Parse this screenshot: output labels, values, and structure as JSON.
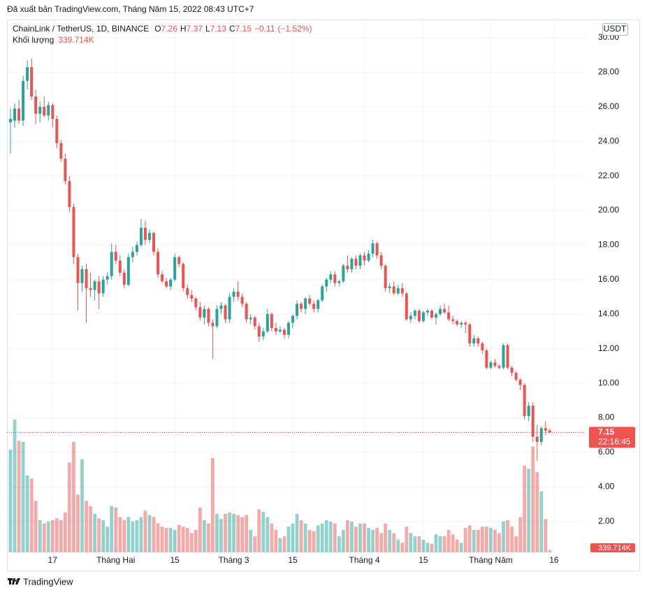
{
  "header": {
    "published": "Đã xuất bản TradingView.com, Tháng Năm 15, 2022 08:43 UTC+7"
  },
  "footer": {
    "brand": "TradingView"
  },
  "chart_data": {
    "type": "candlestick",
    "legend": {
      "symbol": "ChainLink / TetherUS, 1D, BINANCE",
      "fields": [
        "O",
        "H",
        "L",
        "C"
      ],
      "change": {
        "value": -0.11,
        "label": "−0.11"
      },
      "change_pct": {
        "value": -1.52,
        "label": "(−1.52%)"
      },
      "volume_name": "Khối lượng",
      "volume_value": "339.714K",
      "countdown": "22:16:45"
    },
    "currency": "USDT",
    "up_color": "#26a69a",
    "down_color": "#ef5350",
    "ylim": [
      0.21,
      31.05
    ],
    "yticks": [
      {
        "value": 2,
        "label": "2.00"
      },
      {
        "value": 4,
        "label": "4.00"
      },
      {
        "value": 6,
        "label": "6.00"
      },
      {
        "value": 8,
        "label": "8.00"
      },
      {
        "value": 10,
        "label": "10.00"
      },
      {
        "value": 12,
        "label": "12.00"
      },
      {
        "value": 14,
        "label": "14.00"
      },
      {
        "value": 16,
        "label": "16.00"
      },
      {
        "value": 18,
        "label": "18.00"
      },
      {
        "value": 20,
        "label": "20.00"
      },
      {
        "value": 22,
        "label": "22.00"
      },
      {
        "value": 24,
        "label": "24.00"
      },
      {
        "value": 26,
        "label": "26.00"
      },
      {
        "value": 28,
        "label": "28.00"
      },
      {
        "value": 30,
        "label": "30.00"
      }
    ],
    "vlim": [
      0,
      83000000
    ],
    "grid": true,
    "xticks": [
      {
        "value": "2022-01-17",
        "label": "17"
      },
      {
        "value": "2022-02-01",
        "label": "Tháng Hai"
      },
      {
        "value": "2022-02-15",
        "label": "15"
      },
      {
        "value": "2022-03-01",
        "label": "Tháng 3"
      },
      {
        "value": "2022-03-15",
        "label": "15"
      },
      {
        "value": "2022-04-01",
        "label": "Tháng 4"
      },
      {
        "value": "2022-04-15",
        "label": "15"
      },
      {
        "value": "2022-05-01",
        "label": "Tháng Năm"
      },
      {
        "value": "2022-05-16",
        "label": "16"
      }
    ],
    "x": [
      "2022-01-07",
      "2022-01-08",
      "2022-01-09",
      "2022-01-10",
      "2022-01-11",
      "2022-01-12",
      "2022-01-13",
      "2022-01-14",
      "2022-01-15",
      "2022-01-16",
      "2022-01-17",
      "2022-01-18",
      "2022-01-19",
      "2022-01-20",
      "2022-01-21",
      "2022-01-22",
      "2022-01-23",
      "2022-01-24",
      "2022-01-25",
      "2022-01-26",
      "2022-01-27",
      "2022-01-28",
      "2022-01-29",
      "2022-01-30",
      "2022-01-31",
      "2022-02-01",
      "2022-02-02",
      "2022-02-03",
      "2022-02-04",
      "2022-02-05",
      "2022-02-06",
      "2022-02-07",
      "2022-02-08",
      "2022-02-09",
      "2022-02-10",
      "2022-02-11",
      "2022-02-12",
      "2022-02-13",
      "2022-02-14",
      "2022-02-15",
      "2022-02-16",
      "2022-02-17",
      "2022-02-18",
      "2022-02-19",
      "2022-02-20",
      "2022-02-21",
      "2022-02-22",
      "2022-02-23",
      "2022-02-24",
      "2022-02-25",
      "2022-02-26",
      "2022-02-27",
      "2022-02-28",
      "2022-03-01",
      "2022-03-02",
      "2022-03-03",
      "2022-03-04",
      "2022-03-05",
      "2022-03-06",
      "2022-03-07",
      "2022-03-08",
      "2022-03-09",
      "2022-03-10",
      "2022-03-11",
      "2022-03-12",
      "2022-03-13",
      "2022-03-14",
      "2022-03-15",
      "2022-03-16",
      "2022-03-17",
      "2022-03-18",
      "2022-03-19",
      "2022-03-20",
      "2022-03-21",
      "2022-03-22",
      "2022-03-23",
      "2022-03-24",
      "2022-03-25",
      "2022-03-26",
      "2022-03-27",
      "2022-03-28",
      "2022-03-29",
      "2022-03-30",
      "2022-03-31",
      "2022-04-01",
      "2022-04-02",
      "2022-04-03",
      "2022-04-04",
      "2022-04-05",
      "2022-04-06",
      "2022-04-07",
      "2022-04-08",
      "2022-04-09",
      "2022-04-10",
      "2022-04-11",
      "2022-04-12",
      "2022-04-13",
      "2022-04-14",
      "2022-04-15",
      "2022-04-16",
      "2022-04-17",
      "2022-04-18",
      "2022-04-19",
      "2022-04-20",
      "2022-04-21",
      "2022-04-22",
      "2022-04-23",
      "2022-04-24",
      "2022-04-25",
      "2022-04-26",
      "2022-04-27",
      "2022-04-28",
      "2022-04-29",
      "2022-04-30",
      "2022-05-01",
      "2022-05-02",
      "2022-05-03",
      "2022-05-04",
      "2022-05-05",
      "2022-05-06",
      "2022-05-07",
      "2022-05-08",
      "2022-05-09",
      "2022-05-10",
      "2022-05-11",
      "2022-05-12",
      "2022-05-13",
      "2022-05-14",
      "2022-05-15"
    ],
    "ohlc": [
      [
        25.1,
        25.9,
        23.3,
        25.3
      ],
      [
        25.2,
        26.2,
        24.8,
        25.9
      ],
      [
        25.9,
        26.4,
        25.0,
        25.2
      ],
      [
        25.2,
        27.8,
        24.9,
        27.5
      ],
      [
        27.5,
        28.7,
        27.0,
        28.3
      ],
      [
        28.3,
        28.8,
        26.4,
        26.6
      ],
      [
        26.6,
        27.0,
        25.0,
        25.6
      ],
      [
        25.6,
        26.3,
        25.1,
        26.0
      ],
      [
        26.0,
        26.6,
        25.4,
        25.5
      ],
      [
        25.5,
        26.3,
        25.2,
        26.1
      ],
      [
        26.1,
        26.2,
        24.8,
        25.3
      ],
      [
        25.3,
        25.5,
        23.6,
        23.9
      ],
      [
        23.9,
        24.1,
        22.8,
        23.0
      ],
      [
        23.0,
        23.3,
        21.5,
        21.7
      ],
      [
        21.7,
        22.0,
        19.9,
        20.2
      ],
      [
        20.2,
        20.4,
        16.9,
        17.3
      ],
      [
        17.3,
        17.5,
        14.2,
        15.8
      ],
      [
        15.8,
        16.8,
        15.3,
        16.6
      ],
      [
        16.6,
        16.9,
        13.5,
        15.5
      ],
      [
        15.5,
        16.4,
        15.0,
        15.4
      ],
      [
        15.4,
        16.0,
        14.8,
        15.9
      ],
      [
        15.9,
        16.2,
        14.3,
        15.2
      ],
      [
        15.2,
        16.2,
        15.0,
        16.0
      ],
      [
        16.0,
        16.4,
        15.7,
        16.2
      ],
      [
        16.2,
        18.1,
        16.0,
        17.6
      ],
      [
        17.6,
        18.0,
        16.9,
        17.1
      ],
      [
        17.1,
        17.4,
        16.2,
        16.4
      ],
      [
        16.4,
        16.6,
        15.5,
        15.7
      ],
      [
        15.7,
        17.5,
        15.6,
        17.3
      ],
      [
        17.3,
        17.9,
        17.0,
        17.6
      ],
      [
        17.6,
        18.2,
        17.4,
        18.0
      ],
      [
        18.0,
        19.5,
        17.9,
        19.0
      ],
      [
        19.0,
        19.4,
        18.0,
        18.3
      ],
      [
        18.3,
        18.9,
        18.1,
        18.7
      ],
      [
        18.7,
        18.8,
        17.4,
        17.6
      ],
      [
        17.6,
        17.8,
        16.1,
        16.3
      ],
      [
        16.3,
        16.5,
        15.8,
        15.9
      ],
      [
        15.9,
        16.1,
        15.5,
        15.6
      ],
      [
        15.6,
        16.1,
        15.4,
        16.0
      ],
      [
        16.0,
        17.5,
        15.9,
        17.3
      ],
      [
        17.3,
        17.4,
        16.7,
        16.9
      ],
      [
        16.9,
        17.0,
        15.3,
        15.5
      ],
      [
        15.5,
        15.7,
        14.9,
        15.1
      ],
      [
        15.1,
        15.4,
        14.7,
        14.9
      ],
      [
        14.9,
        15.0,
        14.2,
        14.4
      ],
      [
        14.4,
        14.7,
        13.6,
        13.8
      ],
      [
        13.8,
        14.5,
        13.4,
        14.3
      ],
      [
        14.3,
        14.4,
        13.3,
        13.5
      ],
      [
        13.5,
        13.7,
        11.4,
        13.3
      ],
      [
        13.3,
        14.5,
        13.2,
        14.3
      ],
      [
        14.3,
        14.7,
        14.0,
        14.5
      ],
      [
        14.5,
        14.6,
        13.5,
        13.7
      ],
      [
        13.7,
        15.2,
        13.5,
        15.0
      ],
      [
        15.0,
        15.5,
        14.7,
        15.3
      ],
      [
        15.3,
        15.9,
        14.8,
        15.0
      ],
      [
        15.0,
        15.2,
        14.4,
        14.6
      ],
      [
        14.6,
        14.7,
        13.5,
        13.7
      ],
      [
        13.7,
        14.0,
        13.4,
        13.8
      ],
      [
        13.8,
        13.9,
        13.1,
        13.3
      ],
      [
        13.3,
        13.5,
        12.4,
        12.7
      ],
      [
        12.7,
        13.2,
        12.5,
        13.0
      ],
      [
        13.0,
        14.3,
        12.9,
        14.0
      ],
      [
        14.0,
        14.1,
        13.0,
        13.2
      ],
      [
        13.2,
        13.5,
        12.8,
        13.0
      ],
      [
        13.0,
        13.3,
        12.9,
        13.1
      ],
      [
        13.1,
        13.2,
        12.6,
        12.8
      ],
      [
        12.8,
        13.6,
        12.6,
        13.5
      ],
      [
        13.5,
        14.0,
        13.2,
        13.9
      ],
      [
        13.9,
        14.8,
        13.7,
        14.6
      ],
      [
        14.6,
        14.7,
        14.1,
        14.3
      ],
      [
        14.3,
        15.0,
        14.0,
        14.9
      ],
      [
        14.9,
        15.1,
        14.5,
        14.6
      ],
      [
        14.6,
        14.8,
        14.1,
        14.3
      ],
      [
        14.3,
        14.9,
        14.1,
        14.8
      ],
      [
        14.8,
        15.7,
        14.7,
        15.6
      ],
      [
        15.6,
        16.1,
        15.3,
        16.0
      ],
      [
        16.0,
        16.5,
        15.8,
        16.3
      ],
      [
        16.3,
        16.5,
        15.6,
        15.8
      ],
      [
        15.8,
        16.0,
        15.6,
        15.9
      ],
      [
        15.9,
        16.9,
        15.8,
        16.8
      ],
      [
        16.8,
        17.4,
        16.4,
        16.6
      ],
      [
        16.6,
        17.3,
        16.4,
        17.2
      ],
      [
        17.2,
        17.4,
        16.6,
        16.8
      ],
      [
        16.8,
        17.5,
        16.6,
        17.4
      ],
      [
        17.4,
        17.6,
        16.8,
        17.1
      ],
      [
        17.1,
        17.7,
        17.0,
        17.5
      ],
      [
        17.5,
        18.3,
        17.3,
        18.1
      ],
      [
        18.1,
        18.2,
        17.2,
        17.4
      ],
      [
        17.4,
        17.6,
        16.6,
        16.8
      ],
      [
        16.8,
        16.9,
        15.3,
        15.5
      ],
      [
        15.5,
        15.8,
        15.2,
        15.6
      ],
      [
        15.6,
        15.9,
        15.1,
        15.2
      ],
      [
        15.2,
        15.7,
        15.1,
        15.5
      ],
      [
        15.5,
        15.8,
        15.0,
        15.2
      ],
      [
        15.2,
        15.3,
        13.6,
        13.7
      ],
      [
        13.7,
        14.1,
        13.5,
        13.9
      ],
      [
        13.9,
        14.3,
        13.7,
        14.2
      ],
      [
        14.2,
        14.3,
        13.5,
        13.6
      ],
      [
        13.6,
        14.2,
        13.5,
        14.1
      ],
      [
        14.1,
        14.3,
        13.9,
        14.2
      ],
      [
        14.2,
        14.3,
        13.7,
        13.8
      ],
      [
        13.8,
        14.1,
        13.4,
        14.0
      ],
      [
        14.0,
        14.5,
        13.9,
        14.3
      ],
      [
        14.3,
        14.6,
        14.0,
        14.1
      ],
      [
        14.1,
        14.5,
        13.6,
        13.7
      ],
      [
        13.7,
        13.9,
        13.4,
        13.6
      ],
      [
        13.6,
        13.7,
        13.3,
        13.4
      ],
      [
        13.4,
        13.6,
        13.2,
        13.5
      ],
      [
        13.5,
        13.6,
        12.9,
        13.4
      ],
      [
        13.4,
        13.5,
        12.1,
        12.3
      ],
      [
        12.3,
        12.8,
        12.1,
        12.6
      ],
      [
        12.6,
        12.7,
        12.1,
        12.3
      ],
      [
        12.3,
        12.4,
        11.7,
        11.9
      ],
      [
        11.9,
        12.0,
        10.8,
        10.9
      ],
      [
        10.9,
        11.3,
        10.8,
        11.2
      ],
      [
        11.2,
        11.4,
        10.9,
        11.0
      ],
      [
        11.0,
        11.1,
        10.8,
        10.9
      ],
      [
        10.9,
        12.3,
        10.8,
        12.2
      ],
      [
        12.2,
        12.3,
        10.8,
        10.9
      ],
      [
        10.9,
        11.0,
        10.4,
        10.6
      ],
      [
        10.6,
        10.7,
        10.1,
        10.2
      ],
      [
        10.2,
        10.3,
        9.6,
        9.9
      ],
      [
        9.9,
        10.0,
        7.9,
        8.1
      ],
      [
        8.1,
        8.9,
        7.8,
        8.7
      ],
      [
        8.7,
        8.9,
        6.6,
        6.9
      ],
      [
        6.9,
        7.6,
        5.5,
        6.6
      ],
      [
        6.6,
        7.5,
        6.4,
        7.4
      ],
      [
        7.4,
        7.8,
        7.0,
        7.26
      ],
      [
        7.26,
        7.37,
        7.13,
        7.15
      ]
    ],
    "volume": [
      16000000,
      20700000,
      17400000,
      17200000,
      12000000,
      11500000,
      8000000,
      5000000,
      4500000,
      4800000,
      5000000,
      5300000,
      5000000,
      6200000,
      14000000,
      17200000,
      9000000,
      14500000,
      8000000,
      7200000,
      6000000,
      5300000,
      5000000,
      4000000,
      7200000,
      7000000,
      5500000,
      5000000,
      5500000,
      4800000,
      5000000,
      5500000,
      6500000,
      5800000,
      5500000,
      4500000,
      4000000,
      3800000,
      3800000,
      3500000,
      4300000,
      4000000,
      3800000,
      3000000,
      3500000,
      7000000,
      5000000,
      4500000,
      14700000,
      6000000,
      5200000,
      6000000,
      6200000,
      6000000,
      5800000,
      5500000,
      5800000,
      3500000,
      2500000,
      6700000,
      6300000,
      5500000,
      4500000,
      3500000,
      2200000,
      2500000,
      4000000,
      4500000,
      6000000,
      5000000,
      4500000,
      3500000,
      3300000,
      4200000,
      4500000,
      5000000,
      4800000,
      4500000,
      2500000,
      3500000,
      5000000,
      4800000,
      4000000,
      4500000,
      4500000,
      3800000,
      3500000,
      3800000,
      3000000,
      4500000,
      3500000,
      3000000,
      2000000,
      1500000,
      4000000,
      3000000,
      2500000,
      2500000,
      2000000,
      1500000,
      1300000,
      2800000,
      2500000,
      2500000,
      3500000,
      2800000,
      2000000,
      1500000,
      3800000,
      4200000,
      3500000,
      3500000,
      4000000,
      4000000,
      3800000,
      3500000,
      3000000,
      4800000,
      5000000,
      4000000,
      2500000,
      5500000,
      13500000,
      13000000,
      16500000,
      12500000,
      9500000,
      5200000,
      339714
    ]
  }
}
